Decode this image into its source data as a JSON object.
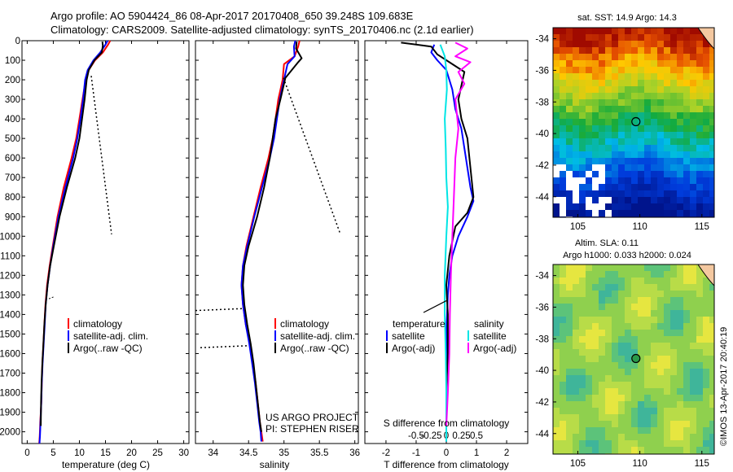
{
  "header": {
    "line1": "Argo profile: AO 5904424_86 08-Apr-2017 20170408_650 39.248S 109.683E",
    "line2": "Climatology: CARS2009. Satellite-adjusted climatology: synTS_20170406.nc (2.1d earlier)"
  },
  "colors": {
    "climatology": "#ff0000",
    "satellite": "#0000ff",
    "argo": "#000000",
    "t_diff_sat": "#00e5e5",
    "s_diff_argo": "#ff00ff"
  },
  "panels": {
    "temperature": {
      "xlabel": "temperature (deg C)",
      "legend": [
        "climatology",
        "satellite-adj. clim.",
        "Argo(..raw -QC)"
      ]
    },
    "salinity": {
      "xlabel": "salinity",
      "legend": [
        "climatology",
        "satellite-adj. clim.",
        "Argo(..raw -QC)"
      ],
      "credit1": "US ARGO PROJECT",
      "credit2": "PI: STEPHEN RISER"
    },
    "difference": {
      "xlabel": "T difference from climatology",
      "top_label": "S difference from climatology",
      "legend_left_title": "temperature",
      "legend_right_title": "salinity",
      "legend_left": [
        "satellite",
        "Argo(-adj)"
      ],
      "legend_right": [
        "satellite",
        "Argo(-adj)"
      ]
    }
  },
  "maps": {
    "sst_title": "sat. SST: 14.9 Argo: 14.3",
    "sla_title1": "Altim. SLA: 0.11",
    "sla_title2": "Argo h1000: 0.033 h2000: 0.024",
    "lat_ticks": [
      "-34",
      "-36",
      "-38",
      "-40",
      "-42",
      "-44"
    ],
    "lon_ticks": [
      "105",
      "110",
      "115"
    ],
    "float_lon": 109.683,
    "float_lat": -39.248
  },
  "watermark": "©IMOS 13-Apr-2017 20:40:19",
  "chart_data": [
    {
      "type": "line",
      "title": "",
      "xlabel": "temperature (deg C)",
      "ylabel": "",
      "xlim": [
        -1,
        31
      ],
      "ylim": [
        2060,
        0
      ],
      "x_ticks": [
        0,
        5,
        10,
        15,
        20,
        25,
        30
      ],
      "y_ticks": [
        0,
        100,
        200,
        300,
        400,
        500,
        600,
        700,
        800,
        900,
        1000,
        1100,
        1200,
        1300,
        1400,
        1500,
        1600,
        1700,
        1800,
        1900,
        2000
      ],
      "series": [
        {
          "name": "climatology",
          "x": [
            15.9,
            15.5,
            14.5,
            13.0,
            11.8,
            11.2,
            10.6,
            10.0,
            9.4,
            8.5,
            7.0,
            5.8,
            4.9,
            4.3,
            3.8,
            3.5,
            3.3,
            3.1,
            2.9,
            2.8,
            2.7,
            2.6,
            2.5,
            2.45,
            2.4,
            2.35,
            2.3
          ],
          "y": [
            0,
            20,
            60,
            100,
            150,
            200,
            300,
            400,
            500,
            600,
            750,
            900,
            1050,
            1150,
            1250,
            1350,
            1450,
            1550,
            1650,
            1750,
            1850,
            1900,
            1950,
            1990,
            2020,
            2040,
            2060
          ]
        },
        {
          "name": "satellite-adj. clim.",
          "x": [
            15.4,
            15.0,
            14.0,
            12.7,
            11.6,
            11.1,
            10.7,
            10.2,
            9.6,
            8.8,
            7.3,
            6.0,
            5.0,
            4.4,
            3.9,
            3.55,
            3.35,
            3.15,
            2.95,
            2.8,
            2.7,
            2.62,
            2.55,
            2.5,
            2.45,
            2.4,
            2.35
          ],
          "y": [
            0,
            20,
            60,
            100,
            150,
            200,
            300,
            400,
            500,
            600,
            750,
            900,
            1050,
            1150,
            1250,
            1350,
            1450,
            1550,
            1650,
            1750,
            1850,
            1900,
            1950,
            1990,
            2020,
            2040,
            2060
          ]
        },
        {
          "name": "Argo(..raw -QC)",
          "x": [
            14.4,
            14.5,
            14.3,
            12.9,
            11.8,
            11.4,
            11.0,
            10.5,
            10.0,
            9.2,
            7.6,
            6.2,
            5.1,
            4.4,
            3.9,
            3.55,
            3.3,
            3.1,
            2.9,
            2.75,
            2.65,
            2.6
          ],
          "y": [
            5,
            25,
            60,
            100,
            150,
            200,
            300,
            400,
            500,
            600,
            750,
            900,
            1050,
            1150,
            1250,
            1350,
            1450,
            1550,
            1650,
            1750,
            1850,
            1970
          ]
        }
      ]
    },
    {
      "type": "line",
      "title": "",
      "xlabel": "salinity",
      "ylabel": "",
      "xlim": [
        33.75,
        36.05
      ],
      "ylim": [
        2060,
        0
      ],
      "x_ticks": [
        34,
        34.5,
        35,
        35.5,
        36
      ],
      "series": [
        {
          "name": "climatology",
          "x": [
            35.22,
            35.2,
            35.15,
            35.0,
            34.98,
            34.92,
            34.88,
            34.84,
            34.78,
            34.67,
            34.57,
            34.47,
            34.42,
            34.4,
            34.42,
            34.46,
            34.52,
            34.56,
            34.6,
            34.63,
            34.66,
            34.68,
            34.7
          ],
          "y": [
            0,
            30,
            80,
            120,
            200,
            300,
            400,
            500,
            600,
            750,
            900,
            1050,
            1150,
            1250,
            1350,
            1450,
            1550,
            1650,
            1750,
            1850,
            1950,
            2000,
            2050
          ]
        },
        {
          "name": "satellite-adj. clim.",
          "x": [
            35.16,
            35.14,
            35.15,
            35.05,
            35.0,
            34.94,
            34.9,
            34.86,
            34.8,
            34.69,
            34.58,
            34.48,
            34.42,
            34.4,
            34.42,
            34.46,
            34.51,
            34.55,
            34.59,
            34.62,
            34.65,
            34.67,
            34.68
          ],
          "y": [
            0,
            30,
            80,
            120,
            200,
            300,
            400,
            500,
            600,
            750,
            900,
            1050,
            1150,
            1250,
            1350,
            1450,
            1550,
            1650,
            1750,
            1850,
            1950,
            2000,
            2050
          ]
        },
        {
          "name": "Argo(..raw -QC)",
          "x": [
            35.18,
            35.17,
            35.25,
            35.2,
            35.02,
            34.95,
            34.88,
            34.84,
            34.8,
            34.72,
            34.62,
            34.5,
            34.44,
            34.42,
            34.44,
            34.48,
            34.53,
            34.57,
            34.6,
            34.63,
            34.66,
            34.68
          ],
          "y": [
            5,
            40,
            90,
            110,
            190,
            300,
            400,
            500,
            600,
            750,
            900,
            1050,
            1150,
            1250,
            1350,
            1450,
            1550,
            1650,
            1750,
            1850,
            1950,
            2000
          ]
        }
      ]
    },
    {
      "type": "line",
      "title": "",
      "xlabel": "T difference from climatology",
      "ylabel": "",
      "xlim": [
        -2.7,
        2.7
      ],
      "ylim": [
        2060,
        0
      ],
      "x_ticks": [
        -2,
        -1,
        0,
        1,
        2
      ],
      "top_ticks": [
        "-0.5",
        "-0.25",
        "0",
        "0.25",
        "0.5"
      ],
      "series": [
        {
          "name": "temperature satellite",
          "x": [
            -0.4,
            -0.5,
            -0.3,
            0.0,
            0.2,
            0.3,
            0.5,
            0.6,
            0.7,
            0.8,
            0.9,
            0.7,
            0.4,
            0.2,
            0.1,
            0.05,
            0.0,
            0.0,
            0.0,
            0.0
          ],
          "y": [
            20,
            60,
            100,
            150,
            250,
            350,
            450,
            550,
            650,
            750,
            820,
            900,
            1000,
            1100,
            1200,
            1300,
            1500,
            1700,
            1900,
            2050
          ]
        },
        {
          "name": "temperature Argo(-adj)",
          "x": [
            -1.5,
            -0.5,
            -0.3,
            0.1,
            0.6,
            0.4,
            0.5,
            0.7,
            0.8,
            0.9,
            0.7,
            0.3,
            0.1,
            0.0,
            0.05,
            0.05,
            0.0,
            0.0
          ],
          "y": [
            10,
            30,
            70,
            110,
            160,
            300,
            400,
            500,
            650,
            800,
            880,
            950,
            1100,
            1250,
            1400,
            1600,
            1800,
            1970
          ]
        },
        {
          "name": "salinity satellite",
          "x": [
            -0.2,
            -0.05,
            0.0,
            0.02,
            -0.05,
            -0.02,
            0.0,
            0.05,
            0.0,
            -0.05,
            -0.05,
            -0.02,
            0.0,
            0.0
          ],
          "y": [
            20,
            80,
            150,
            250,
            400,
            550,
            700,
            850,
            1000,
            1200,
            1400,
            1600,
            1800,
            2050
          ]
        },
        {
          "name": "salinity Argo(-adj)",
          "x": [
            0.3,
            0.7,
            0.3,
            0.8,
            0.4,
            0.6,
            0.3,
            0.4,
            0.3,
            0.25,
            0.2,
            0.15,
            0.12,
            0.1,
            0.05,
            0.0
          ],
          "y": [
            10,
            40,
            80,
            110,
            160,
            220,
            300,
            450,
            600,
            800,
            1000,
            1200,
            1400,
            1600,
            1800,
            1970
          ]
        }
      ]
    }
  ]
}
